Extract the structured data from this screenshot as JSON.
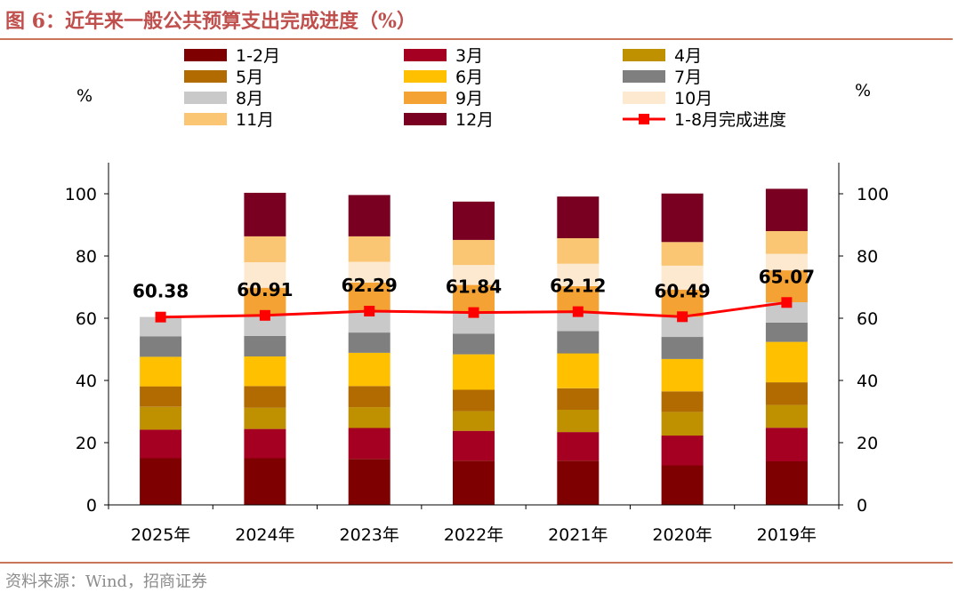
{
  "figure": {
    "title": "图 6：近年来一般公共预算支出完成进度（%）",
    "source": "资料来源：Wind，招商证券"
  },
  "chart_data": {
    "type": "bar",
    "stacked": true,
    "categories": [
      "2025年",
      "2024年",
      "2023年",
      "2022年",
      "2021年",
      "2020年",
      "2019年"
    ],
    "y_unit_left": "%",
    "y_unit_right": "%",
    "ylim": [
      0,
      110
    ],
    "yticks": [
      0,
      20,
      40,
      60,
      80,
      100
    ],
    "grid": false,
    "legend_position": "top",
    "series": [
      {
        "name": "1-2月",
        "color": "#7f0000",
        "values": [
          15.0,
          15.0,
          14.8,
          14.2,
          14.2,
          12.7,
          14.0
        ]
      },
      {
        "name": "3月",
        "color": "#a50021",
        "values": [
          9.2,
          9.4,
          9.9,
          9.6,
          9.2,
          9.6,
          10.8
        ]
      },
      {
        "name": "4月",
        "color": "#bf9000",
        "values": [
          7.3,
          6.8,
          6.7,
          6.3,
          7.2,
          7.6,
          7.3
        ]
      },
      {
        "name": "5月",
        "color": "#b26b00",
        "values": [
          6.6,
          7.0,
          6.8,
          6.9,
          6.9,
          6.6,
          7.3
        ]
      },
      {
        "name": "6月",
        "color": "#ffc000",
        "values": [
          9.5,
          9.5,
          10.7,
          11.4,
          11.2,
          10.4,
          13.0
        ]
      },
      {
        "name": "7月",
        "color": "#7f7f7f",
        "values": [
          6.6,
          6.6,
          6.5,
          6.6,
          7.2,
          7.1,
          6.2
        ]
      },
      {
        "name": "8月",
        "color": "#c9c9c9",
        "values": [
          6.2,
          6.6,
          6.9,
          6.8,
          6.2,
          6.5,
          6.5
        ]
      },
      {
        "name": "9月",
        "color": "#f5a235",
        "values": [
          0,
          8.9,
          9.2,
          8.9,
          8.2,
          8.7,
          10.3
        ]
      },
      {
        "name": "10月",
        "color": "#fde9d0",
        "values": [
          0,
          8.2,
          6.6,
          6.4,
          7.2,
          7.7,
          5.3
        ]
      },
      {
        "name": "11月",
        "color": "#fac673",
        "values": [
          0,
          8.3,
          8.2,
          8.1,
          8.2,
          7.6,
          7.3
        ]
      },
      {
        "name": "12月",
        "color": "#7a0022",
        "values": [
          0,
          14.0,
          13.3,
          12.3,
          13.4,
          15.6,
          13.6
        ]
      }
    ],
    "line_series": {
      "name": "1-8月完成进度",
      "color": "#ff0000",
      "values": [
        60.38,
        60.91,
        62.29,
        61.84,
        62.12,
        60.49,
        65.07
      ],
      "labels": [
        "60.38",
        "60.91",
        "62.29",
        "61.84",
        "62.12",
        "60.49",
        "65.07"
      ]
    }
  }
}
